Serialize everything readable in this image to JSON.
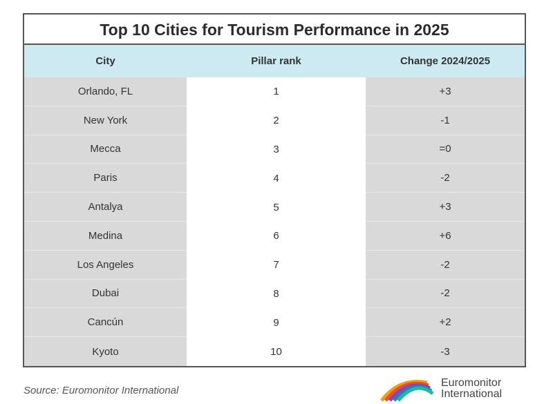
{
  "chart_data": {
    "type": "table",
    "title": "Top 10 Cities for Tourism Performance in 2025",
    "columns": [
      "City",
      "Pillar rank",
      "Change 2024/2025"
    ],
    "rows": [
      [
        "Orlando, FL",
        "1",
        "+3"
      ],
      [
        "New York",
        "2",
        "-1"
      ],
      [
        "Mecca",
        "3",
        "=0"
      ],
      [
        "Paris",
        "4",
        "-2"
      ],
      [
        "Antalya",
        "5",
        "+3"
      ],
      [
        "Medina",
        "6",
        "+6"
      ],
      [
        "Los Angeles",
        "7",
        "-2"
      ],
      [
        "Dubai",
        "8",
        "-2"
      ],
      [
        "Cancún",
        "9",
        "+2"
      ],
      [
        "Kyoto",
        "10",
        "-3"
      ]
    ]
  },
  "source": "Source: Euromonitor International",
  "logo": {
    "line1": "Euromonitor",
    "line2": "International",
    "colors": [
      "#f39c12",
      "#e74c3c",
      "#8e44ad",
      "#2980b9",
      "#1abc9c"
    ]
  }
}
